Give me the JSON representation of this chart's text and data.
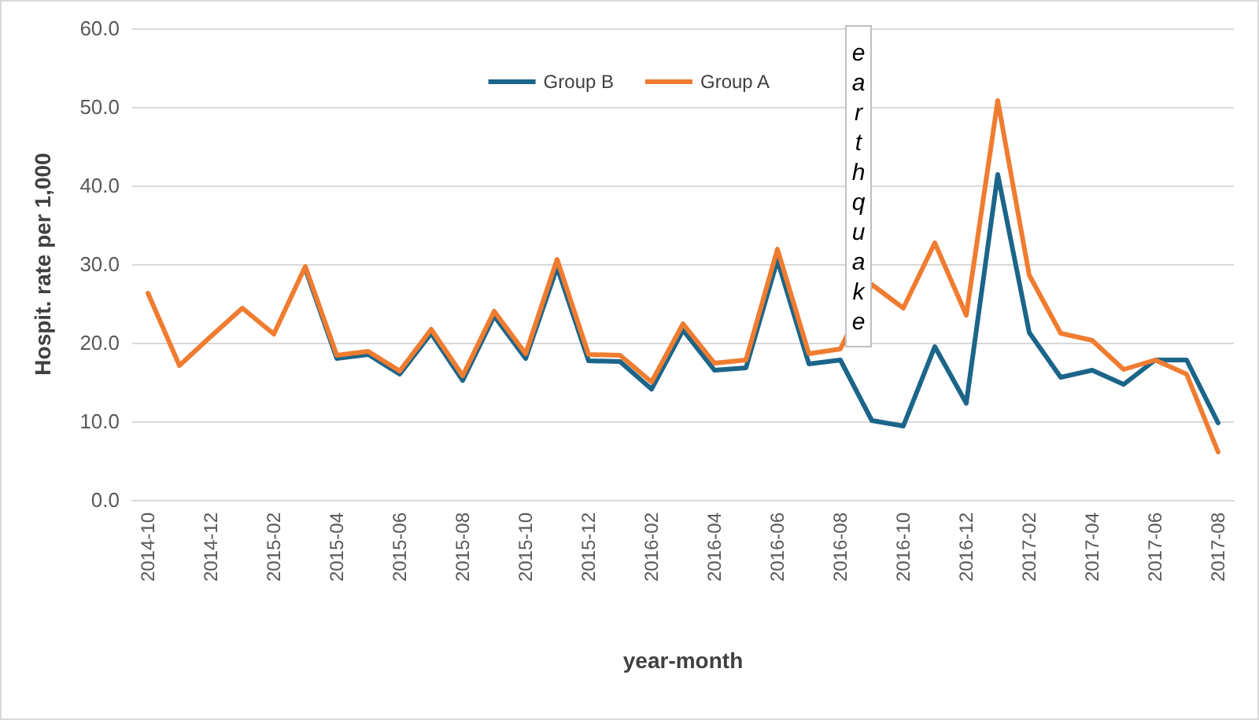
{
  "chart_data": {
    "type": "line",
    "xlabel": "year-month",
    "ylabel": "Hospit. rate per 1,000",
    "categories": [
      "2014-10",
      null,
      "2014-12",
      null,
      "2015-02",
      null,
      "2015-04",
      null,
      "2015-06",
      null,
      "2015-08",
      null,
      "2015-10",
      null,
      "2015-12",
      null,
      "2016-02",
      null,
      "2016-04",
      null,
      "2016-06",
      null,
      "2016-08",
      null,
      "2016-10",
      null,
      "2016-12",
      null,
      "2017-02",
      null,
      "2017-04",
      null,
      "2017-06",
      null,
      "2017-08"
    ],
    "series": [
      {
        "name": "Group B",
        "color": "#1b6589",
        "values": [
          null,
          null,
          null,
          null,
          null,
          29.4,
          18.0,
          18.5,
          16.0,
          21.2,
          15.2,
          23.4,
          18.0,
          29.6,
          17.7,
          17.6,
          14.1,
          21.6,
          16.5,
          16.8,
          30.5,
          17.3,
          17.8,
          10.1,
          9.4,
          19.5,
          12.3,
          41.4,
          21.3,
          15.6,
          16.5,
          14.7,
          17.8,
          17.8,
          9.8
        ]
      },
      {
        "name": "Group A",
        "color": "#f07c30",
        "values": [
          26.3,
          17.1,
          20.8,
          24.4,
          21.1,
          29.7,
          18.4,
          18.9,
          16.4,
          21.7,
          15.8,
          24.0,
          18.6,
          30.6,
          18.5,
          18.4,
          15.0,
          22.4,
          17.4,
          17.8,
          31.9,
          18.6,
          19.2,
          27.4,
          24.4,
          32.7,
          23.5,
          50.8,
          28.6,
          21.2,
          20.3,
          16.6,
          17.8,
          16.0,
          6.1
        ]
      }
    ],
    "ylim": [
      0,
      60
    ],
    "yticks": [
      {
        "value": 0,
        "label": "0.0"
      },
      {
        "value": 10,
        "label": "10.0"
      },
      {
        "value": 20,
        "label": "20.0"
      },
      {
        "value": 30,
        "label": "30.0"
      },
      {
        "value": 40,
        "label": "40.0"
      },
      {
        "value": 50,
        "label": "50.0"
      },
      {
        "value": 60,
        "label": "60.0"
      }
    ],
    "grid": "y",
    "legend": "top",
    "marker": "none",
    "line_style": "solid",
    "annotations": [
      "earthquake"
    ]
  }
}
